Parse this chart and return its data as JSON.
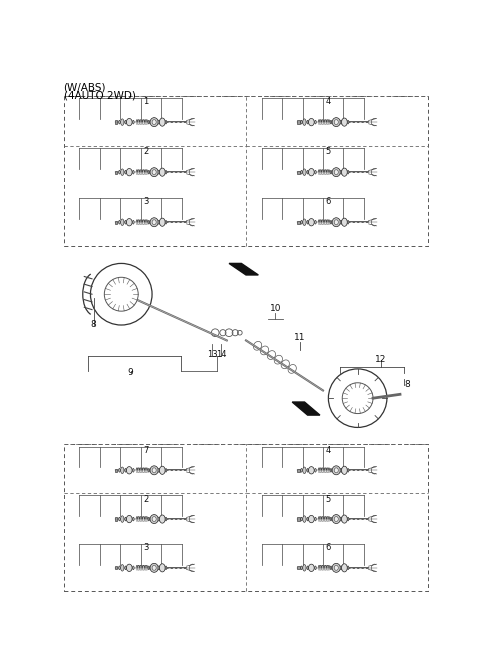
{
  "title_line1": "(W/ABS)",
  "title_line2": "(4AUTO 2WD)",
  "bg_color": "#ffffff",
  "text_color": "#000000",
  "top_panel": {
    "left_labels": [
      "1",
      "2",
      "3"
    ],
    "right_labels": [
      "4",
      "5",
      "6"
    ]
  },
  "bottom_panel": {
    "left_labels": [
      "7",
      "2",
      "3"
    ],
    "right_labels": [
      "4",
      "5",
      "6"
    ]
  },
  "center_labels": {
    "8_left": "8",
    "9": "9",
    "10": "10",
    "11": "11",
    "12": "12",
    "13": "13",
    "14": "14",
    "8_right": "8"
  }
}
